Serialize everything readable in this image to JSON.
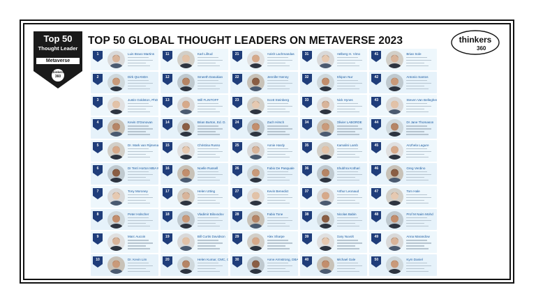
{
  "title": "TOP 50 GLOBAL THOUGHT LEADERS ON METAVERSE 2023",
  "badge": {
    "top": "Top 50",
    "sub": "Thought Leader",
    "topic": "Metaverse",
    "brand": "thinkers",
    "brand_num": "360"
  },
  "logo": {
    "brand": "thinkers",
    "num": "360"
  },
  "colors": {
    "navy": "#1f3d7a",
    "dark": "#1a1a1a",
    "cell": "#eef7fc"
  },
  "leaders": [
    {
      "rank": "1",
      "name": "Luis Bravo Martins"
    },
    {
      "rank": "2",
      "name": "Dirk QUANDA"
    },
    {
      "rank": "3",
      "name": "Justin Goldston, PhD"
    },
    {
      "rank": "4",
      "name": "Kevin O'Donovan"
    },
    {
      "rank": "5",
      "name": "Dr. Mark van Rijmenam"
    },
    {
      "rank": "6",
      "name": "Dr Terri Horton MBA MA"
    },
    {
      "rank": "7",
      "name": "Tony Moroney"
    },
    {
      "rank": "8",
      "name": "Peter Holscher"
    },
    {
      "rank": "9",
      "name": "Marc Aucoin"
    },
    {
      "rank": "10",
      "name": "Dr. Kevin Lim"
    },
    {
      "rank": "11",
      "name": "Karl Lillrud"
    },
    {
      "rank": "12",
      "name": "Smeeth Dasukian"
    },
    {
      "rank": "13",
      "name": "Will FLINTOFF"
    },
    {
      "rank": "14",
      "name": "Brian Burton, Ed. D."
    },
    {
      "rank": "15",
      "name": "Christina Russo"
    },
    {
      "rank": "16",
      "name": "Noelle Russell"
    },
    {
      "rank": "17",
      "name": "Helen Utting"
    },
    {
      "rank": "18",
      "name": "Vladimir Bilovodov"
    },
    {
      "rank": "19",
      "name": "Bill Curtis Davidson"
    },
    {
      "rank": "20",
      "name": "Helen Kumar, CMC, CA"
    },
    {
      "rank": "21",
      "name": "Anish Lachmandas"
    },
    {
      "rank": "22",
      "name": "Jennifer Nenny"
    },
    {
      "rank": "23",
      "name": "Scott Steinberg"
    },
    {
      "rank": "24",
      "name": "Zach Hirsch"
    },
    {
      "rank": "25",
      "name": "Annie Hardy"
    },
    {
      "rank": "26",
      "name": "Fabio De Pasquale"
    },
    {
      "rank": "27",
      "name": "Kevin Benedict"
    },
    {
      "rank": "28",
      "name": "Fabio Tone"
    },
    {
      "rank": "29",
      "name": "Alex Sharpe"
    },
    {
      "rank": "30",
      "name": "Anne Armstrong, DBA"
    },
    {
      "rank": "31",
      "name": "Helberg H. Vimo"
    },
    {
      "rank": "32",
      "name": "Shipon Nur"
    },
    {
      "rank": "33",
      "name": "Nick Hynes"
    },
    {
      "rank": "34",
      "name": "Olivier LABORDE"
    },
    {
      "rank": "35",
      "name": "Kamalini Lamb"
    },
    {
      "rank": "36",
      "name": "Shubhra Kothari"
    },
    {
      "rank": "37",
      "name": "Arthur Leonaud"
    },
    {
      "rank": "38",
      "name": "Nicolas Babin"
    },
    {
      "rank": "39",
      "name": "Gary Nuvolt"
    },
    {
      "rank": "40",
      "name": "Michael Gale"
    },
    {
      "rank": "41",
      "name": "Brian Sole"
    },
    {
      "rank": "42",
      "name": "Antonio Santos"
    },
    {
      "rank": "43",
      "name": "Steven Van Belleghem"
    },
    {
      "rank": "44",
      "name": "Dr Jane Thomason"
    },
    {
      "rank": "45",
      "name": "Anzhela Lagure"
    },
    {
      "rank": "46",
      "name": "Greg Verdino"
    },
    {
      "rank": "47",
      "name": "Tom Hale"
    },
    {
      "rank": "48",
      "name": "Prof M Naim Mohd"
    },
    {
      "rank": "49",
      "name": "Anna Marandow"
    },
    {
      "rank": "50",
      "name": "Kym Daniel"
    }
  ]
}
